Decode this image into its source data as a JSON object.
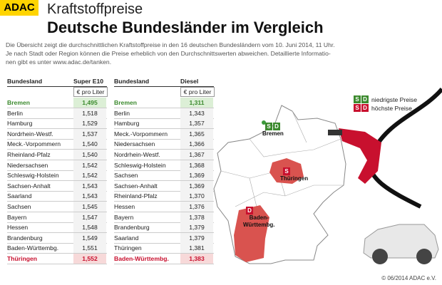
{
  "header": {
    "logo": "ADAC",
    "kicker": "Kraftstoffpreise",
    "title": "Deutsche Bundesländer im Vergleich"
  },
  "intro": [
    "Die Übersicht zeigt die durchschnittlichen Kraftstoffpreise in den 16  deutschen Bundesländern vom  10. Juni 2014, 11 Uhr.",
    "Je nach Stadt oder Region können die Preise erheblich von den Durchschnittswerten abweichen. Detaillierte Informatio-",
    "nen gibt es unter www.adac.de/tanken."
  ],
  "tables": [
    {
      "columns": [
        "Bundesland",
        "Super E10"
      ],
      "unit": "€ pro Liter",
      "rows": [
        [
          "Bremen",
          "1,495"
        ],
        [
          "Berlin",
          "1,518"
        ],
        [
          "Hamburg",
          "1,529"
        ],
        [
          "Nordrhein-Westf.",
          "1,537"
        ],
        [
          "Meck.-Vorpommern",
          "1,540"
        ],
        [
          "Rheinland-Pfalz",
          "1,540"
        ],
        [
          "Niedersachsen",
          "1,542"
        ],
        [
          "Schleswig-Holstein",
          "1,542"
        ],
        [
          "Sachsen-Anhalt",
          "1,543"
        ],
        [
          "Saarland",
          "1,543"
        ],
        [
          "Sachsen",
          "1,545"
        ],
        [
          "Bayern",
          "1,547"
        ],
        [
          "Hessen",
          "1,548"
        ],
        [
          "Brandenburg",
          "1,549"
        ],
        [
          "Baden-Württembg.",
          "1,551"
        ],
        [
          "Thüringen",
          "1,552"
        ]
      ]
    },
    {
      "columns": [
        "Bundesland",
        "Diesel"
      ],
      "unit": "€ pro Liter",
      "rows": [
        [
          "Bremen",
          "1,311"
        ],
        [
          "Berlin",
          "1,343"
        ],
        [
          "Hamburg",
          "1,357"
        ],
        [
          "Meck.-Vorpommern",
          "1,365"
        ],
        [
          "Niedersachsen",
          "1,366"
        ],
        [
          "Nordrhein-Westf.",
          "1,367"
        ],
        [
          "Schleswig-Holstein",
          "1,368"
        ],
        [
          "Sachsen",
          "1,369"
        ],
        [
          "Sachsen-Anhalt",
          "1,369"
        ],
        [
          "Rheinland-Pfalz",
          "1,370"
        ],
        [
          "Hessen",
          "1,376"
        ],
        [
          "Bayern",
          "1,378"
        ],
        [
          "Brandenburg",
          "1,379"
        ],
        [
          "Saarland",
          "1,379"
        ],
        [
          "Thüringen",
          "1,381"
        ],
        [
          "Baden-Württembg.",
          "1,383"
        ]
      ]
    }
  ],
  "legend": [
    {
      "badges": [
        "S",
        "D"
      ],
      "label": "niedrigste Preise"
    },
    {
      "badges": [
        "S",
        "D"
      ],
      "label": "höchste Preise"
    }
  ],
  "map_labels": [
    {
      "badges": [
        "S",
        "D"
      ],
      "label": "Bremen"
    },
    {
      "badges": [
        "S"
      ],
      "label": "Thüringen"
    },
    {
      "badges": [
        "D"
      ],
      "label": "Baden-\nWürttembg."
    }
  ],
  "footer": "© 06/2014 ADAC e.V."
}
